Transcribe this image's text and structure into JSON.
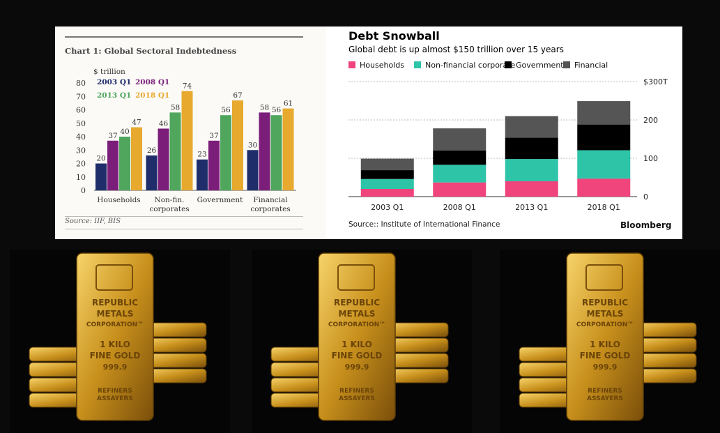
{
  "chart_data": [
    {
      "type": "bar",
      "title": "Chart 1: Global Sectoral Indebtedness",
      "ylabel": "$ trillion",
      "ylim": [
        0,
        80
      ],
      "yticks": [
        0,
        10,
        20,
        30,
        40,
        50,
        60,
        70,
        80
      ],
      "categories": [
        "Households",
        "Non-fin.\ncorporates",
        "Government",
        "Financial\ncorporates"
      ],
      "category_lines": [
        [
          "Households"
        ],
        [
          "Non-fin.",
          "corporates"
        ],
        [
          "Government"
        ],
        [
          "Financial",
          "corporates"
        ]
      ],
      "series": [
        {
          "name": "2003 Q1",
          "color": "#1f2d6b",
          "values": [
            20,
            26,
            23,
            30
          ]
        },
        {
          "name": "2008 Q1",
          "color": "#7b1e7a",
          "values": [
            37,
            46,
            37,
            58
          ]
        },
        {
          "name": "2013 Q1",
          "color": "#4fa65c",
          "values": [
            40,
            58,
            56,
            56
          ]
        },
        {
          "name": "2018 Q1",
          "color": "#e8a92f",
          "values": [
            47,
            74,
            67,
            61
          ]
        }
      ],
      "legend_position": "top-left",
      "source": "Source: IIF, BIS"
    },
    {
      "type": "bar",
      "stacked": true,
      "title": "Debt Snowball",
      "subtitle": "Global debt is up almost $150 trillion over 15 years",
      "categories": [
        "2003 Q1",
        "2008 Q1",
        "2013 Q1",
        "2018 Q1"
      ],
      "ylim": [
        0,
        300
      ],
      "yticks": [
        0,
        100,
        200,
        300
      ],
      "ytick_labels": [
        "0",
        "100",
        "200",
        "$300T"
      ],
      "y_axis_side": "right",
      "series": [
        {
          "name": "Households",
          "color": "#f0447c",
          "values": [
            20,
            37,
            40,
            47
          ]
        },
        {
          "name": "Non-financial corporate",
          "color": "#2ec4a8",
          "values": [
            26,
            46,
            58,
            74
          ]
        },
        {
          "name": "Government",
          "color": "#000000",
          "values": [
            23,
            37,
            56,
            67
          ]
        },
        {
          "name": "Financial",
          "color": "#555555",
          "values": [
            30,
            58,
            56,
            61
          ]
        }
      ],
      "legend_position": "top",
      "source": "Source:: Institute of International Finance",
      "brand": "Bloomberg"
    }
  ],
  "photos": [
    {
      "bar_text": [
        "REPUBLIC",
        "METALS",
        "CORPORATION™",
        "1 KILO",
        "FINE GOLD",
        "999.9",
        "REFINERS",
        "ASSAYERS"
      ]
    },
    {
      "bar_text": [
        "REPUBLIC",
        "METALS",
        "CORPORATION™",
        "1 KILO",
        "FINE GOLD",
        "999.9",
        "REFINERS",
        "ASSAYERS"
      ]
    },
    {
      "bar_text": [
        "REPUBLIC",
        "METALS",
        "CORPORATION™",
        "1 KILO",
        "FINE GOLD",
        "999.9",
        "REFINERS",
        "ASSAYERS"
      ]
    }
  ]
}
